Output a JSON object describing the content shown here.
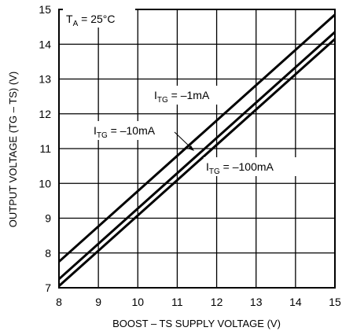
{
  "chart_data": {
    "type": "line",
    "xlabel": "BOOST – TS SUPPLY VOLTAGE (V)",
    "ylabel": "OUTPUT VOLTAGE (TG – TS) (V)",
    "xlim": [
      8,
      15
    ],
    "ylim": [
      7,
      15
    ],
    "xticks": [
      "8",
      "9",
      "10",
      "11",
      "12",
      "13",
      "14",
      "15"
    ],
    "yticks": [
      "7",
      "8",
      "9",
      "10",
      "11",
      "12",
      "13",
      "14",
      "15"
    ],
    "grid": true,
    "condition": {
      "main": "T",
      "sub": "A",
      "rest": " = 25°C"
    },
    "series": [
      {
        "name": "–1mA",
        "label_main": "I",
        "label_sub": "TG",
        "label_rest": " = –1mA",
        "x": [
          8,
          15
        ],
        "y": [
          7.75,
          14.85
        ]
      },
      {
        "name": "–10mA",
        "label_main": "I",
        "label_sub": "TG",
        "label_rest": " = –10mA",
        "x": [
          8,
          15
        ],
        "y": [
          7.25,
          14.35
        ]
      },
      {
        "name": "–100mA",
        "label_main": "I",
        "label_sub": "TG",
        "label_rest": " = –100mA",
        "x": [
          8,
          15
        ],
        "y": [
          7.05,
          14.15
        ]
      }
    ]
  }
}
